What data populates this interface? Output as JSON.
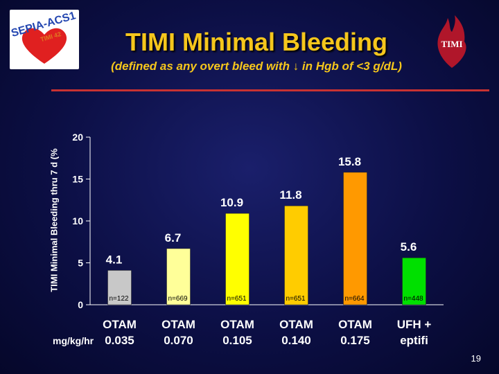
{
  "logo_left": {
    "text_top": "SEPIA-ACS1",
    "text_sub": "TIMI 42"
  },
  "logo_right": {
    "text": "TIMI"
  },
  "title": "TIMI Minimal Bleeding",
  "subtitle": "(defined as any overt bleed with ↓ in Hgb of <3 g/dL)",
  "slide_number": "19",
  "unit_label": "mg/kg/hr",
  "chart_data": {
    "type": "bar",
    "title": "TIMI Minimal Bleeding",
    "ylabel": "TIMI Minimal Bleeding thru 7 d (%",
    "ylim": [
      0,
      20
    ],
    "yticks": [
      0,
      5,
      10,
      15,
      20
    ],
    "grid": false,
    "categories": [
      {
        "line1": "OTAM",
        "line2": "0.035"
      },
      {
        "line1": "OTAM",
        "line2": "0.070"
      },
      {
        "line1": "OTAM",
        "line2": "0.105"
      },
      {
        "line1": "OTAM",
        "line2": "0.140"
      },
      {
        "line1": "OTAM",
        "line2": "0.175"
      },
      {
        "line1": "UFH +",
        "line2": "eptifi"
      }
    ],
    "values": [
      4.1,
      6.7,
      10.9,
      11.8,
      15.8,
      5.6
    ],
    "value_labels": [
      "4.1",
      "6.7",
      "10.9",
      "11.8",
      "15.8",
      "5.6"
    ],
    "n_labels": [
      "n=122",
      "n=669",
      "n=651",
      "n=651",
      "n=664",
      "n=448"
    ],
    "colors": [
      "#c8c8c8",
      "#ffff99",
      "#ffff00",
      "#ffcc00",
      "#ff9900",
      "#00e000"
    ]
  }
}
